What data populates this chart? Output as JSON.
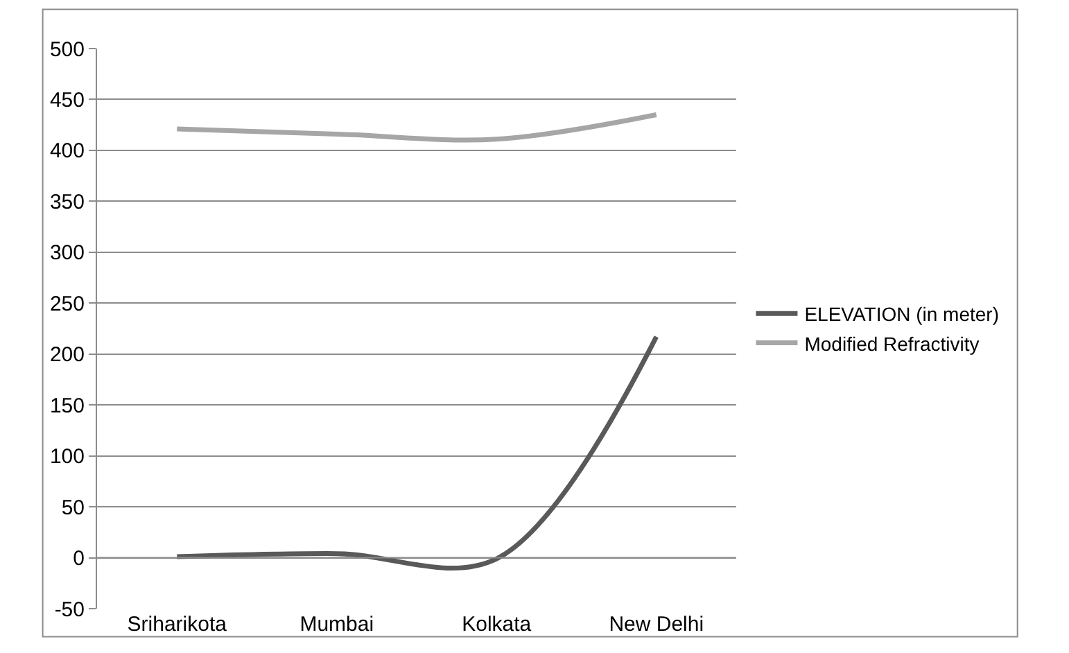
{
  "chart_data": {
    "type": "line",
    "categories": [
      "Sriharikota",
      "Mumbai",
      "Kolkata",
      "New Delhi"
    ],
    "series": [
      {
        "name": "ELEVATION (in meter)",
        "color": "#595959",
        "values": [
          1,
          4,
          -1,
          217
        ]
      },
      {
        "name": "Modified Refractivity",
        "color": "#a6a6a6",
        "values": [
          421,
          416,
          411,
          435
        ]
      }
    ],
    "ylim": [
      -50,
      500
    ],
    "yticks": [
      -50,
      0,
      50,
      100,
      150,
      200,
      250,
      300,
      350,
      400,
      450,
      500
    ],
    "grid": "y",
    "legend": "right",
    "marker": "none",
    "line_style": "solid"
  }
}
